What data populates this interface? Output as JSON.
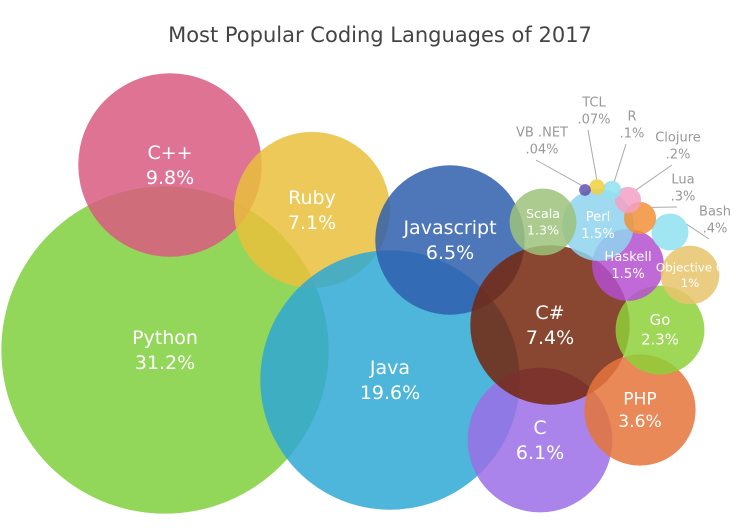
{
  "chart_data": {
    "type": "bubble",
    "title": "Most Popular Coding Languages of 2017",
    "categories": [
      "Python",
      "C++",
      "Ruby",
      "Java",
      "Javascript",
      "C",
      "C#",
      "PHP",
      "Go",
      "Haskell",
      "Objective C",
      "Perl",
      "Scala",
      "Bash",
      "Lua",
      "Clojure",
      "R",
      "TCL",
      "VB .NET"
    ],
    "values": [
      31.2,
      9.8,
      7.1,
      19.6,
      6.5,
      6.1,
      7.4,
      3.6,
      2.3,
      1.5,
      1,
      1.5,
      1.3,
      0.4,
      0.3,
      0.2,
      0.1,
      0.07,
      0.04
    ],
    "value_labels": [
      "31.2%",
      "9.8%",
      "7.1%",
      "19.6%",
      "6.5%",
      "6.1%",
      "7.4%",
      "3.6%",
      "2.3%",
      "1.5%",
      "1%",
      "1.5%",
      "1.3%",
      ".4%",
      ".3%",
      ".2%",
      ".1%",
      ".07%",
      ".04%"
    ],
    "colors": [
      "#7fd03c",
      "#d95a80",
      "#e9bf3c",
      "#2fa8d5",
      "#2f5fae",
      "#9b6ee6",
      "#74260c",
      "#e5743a",
      "#8ed03a",
      "#b450d0",
      "#e8c46c",
      "#8fd3ef",
      "#9cc27b",
      "#8fe0f0",
      "#f0913a",
      "#f3a0c6",
      "#8fe0f0",
      "#f0d040",
      "#6050b0"
    ]
  }
}
